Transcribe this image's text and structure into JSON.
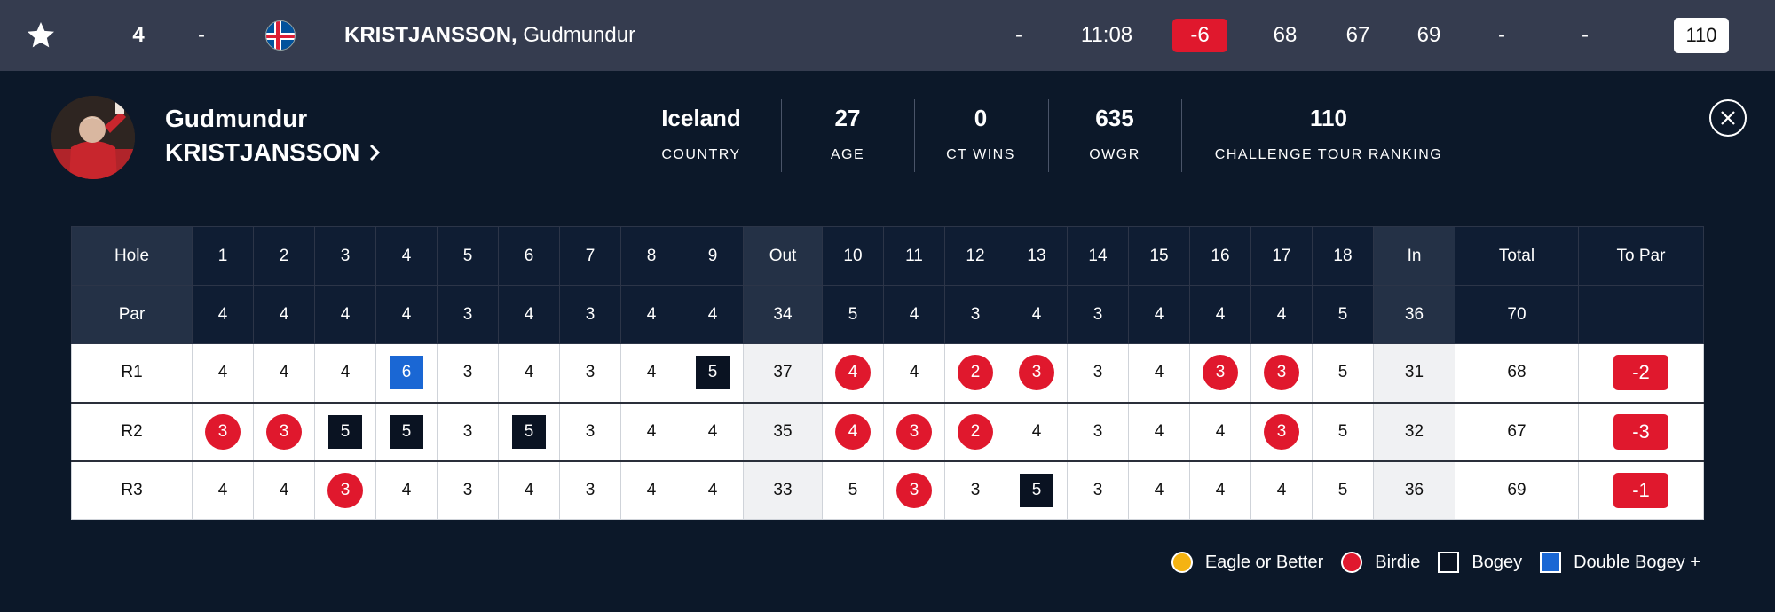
{
  "top_row": {
    "position": "4",
    "movement": "-",
    "country_flag": "iceland-flag",
    "last_name": "KRISTJANSSON,",
    "first_name": "Gudmundur",
    "thru": "-",
    "tee_time": "11:08",
    "to_par": "-6",
    "r1": "68",
    "r2": "67",
    "r3": "69",
    "r4": "-",
    "total": "-",
    "ranking": "110"
  },
  "profile": {
    "first_name": "Gudmundur",
    "last_name": "KRISTJANSSON",
    "stats": [
      {
        "value": "Iceland",
        "label": "COUNTRY"
      },
      {
        "value": "27",
        "label": "AGE"
      },
      {
        "value": "0",
        "label": "CT WINS"
      },
      {
        "value": "635",
        "label": "OWGR"
      },
      {
        "value": "110",
        "label": "CHALLENGE TOUR RANKING"
      }
    ]
  },
  "scorecard": {
    "hole_label": "Hole",
    "par_label": "Par",
    "out_label": "Out",
    "in_label": "In",
    "total_label": "Total",
    "topar_label": "To Par",
    "holes": [
      "1",
      "2",
      "3",
      "4",
      "5",
      "6",
      "7",
      "8",
      "9",
      "10",
      "11",
      "12",
      "13",
      "14",
      "15",
      "16",
      "17",
      "18"
    ],
    "pars": [
      "4",
      "4",
      "4",
      "4",
      "3",
      "4",
      "3",
      "4",
      "4",
      "5",
      "4",
      "3",
      "4",
      "3",
      "4",
      "4",
      "4",
      "5"
    ],
    "par_out": "34",
    "par_in": "36",
    "par_total": "70",
    "rounds": [
      {
        "label": "R1",
        "scores": [
          "4",
          "4",
          "4",
          "6",
          "3",
          "4",
          "3",
          "4",
          "5",
          "4",
          "4",
          "2",
          "3",
          "3",
          "4",
          "3",
          "3",
          "5"
        ],
        "types": [
          "",
          "",
          "",
          "dbogey",
          "",
          "",
          "",
          "",
          "bogey",
          "birdie",
          "",
          "birdie",
          "birdie",
          "",
          "",
          "birdie",
          "birdie",
          ""
        ],
        "out": "37",
        "in": "31",
        "total": "68",
        "to_par": "-2"
      },
      {
        "label": "R2",
        "scores": [
          "3",
          "3",
          "5",
          "5",
          "3",
          "5",
          "3",
          "4",
          "4",
          "4",
          "3",
          "2",
          "4",
          "3",
          "4",
          "4",
          "3",
          "5"
        ],
        "types": [
          "birdie",
          "birdie",
          "bogey",
          "bogey",
          "",
          "bogey",
          "",
          "",
          "",
          "birdie",
          "birdie",
          "birdie",
          "",
          "",
          "",
          "",
          "birdie",
          ""
        ],
        "out": "35",
        "in": "32",
        "total": "67",
        "to_par": "-3"
      },
      {
        "label": "R3",
        "scores": [
          "4",
          "4",
          "3",
          "4",
          "3",
          "4",
          "3",
          "4",
          "4",
          "5",
          "3",
          "3",
          "5",
          "3",
          "4",
          "4",
          "4",
          "5"
        ],
        "types": [
          "",
          "",
          "birdie",
          "",
          "",
          "",
          "",
          "",
          "",
          "",
          "birdie",
          "",
          "bogey",
          "",
          "",
          "",
          "",
          ""
        ],
        "out": "33",
        "in": "36",
        "total": "69",
        "to_par": "-1"
      }
    ]
  },
  "legend": [
    {
      "label": "Eagle or Better",
      "type": "eagle"
    },
    {
      "label": "Birdie",
      "type": "birdie"
    },
    {
      "label": "Bogey",
      "type": "bogey"
    },
    {
      "label": "Double Bogey +",
      "type": "dbogey"
    }
  ],
  "colors": {
    "background": "#0c1829",
    "top_row": "#353c4f",
    "birdie": "#e0182d",
    "eagle": "#f5b312",
    "bogey": "#0a1322",
    "double_bogey": "#1a67d4"
  },
  "icons": {
    "favorite": "star-icon",
    "close": "close-icon",
    "profile_link": "chevron-right-icon"
  }
}
